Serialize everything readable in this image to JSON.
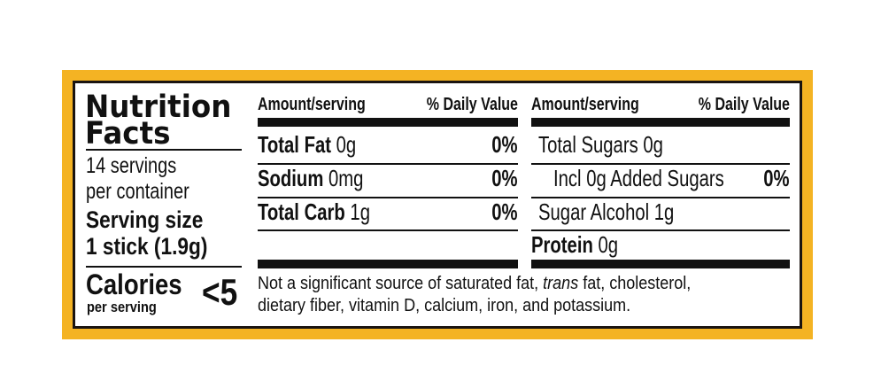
{
  "colors": {
    "frame": "#f4b323",
    "border": "#1a1410"
  },
  "title_line1": "Nutrition",
  "title_line2": "Facts",
  "servings_line1": "14 servings",
  "servings_line2": "per container",
  "serving_size_label": "Serving size",
  "serving_size_value": "1 stick (1.9g)",
  "calories_label": "Calories",
  "calories_sub": "per serving",
  "calories_value": "<5",
  "left_table": {
    "header_amount": "Amount/serving",
    "header_dv": "% Daily Value",
    "rows": [
      {
        "name": "Total Fat",
        "amount": "0g",
        "dv": "0%"
      },
      {
        "name": "Sodium",
        "amount": "0mg",
        "dv": "0%"
      },
      {
        "name": "Total Carb",
        "amount": "1g",
        "dv": "0%"
      }
    ]
  },
  "right_table": {
    "header_amount": "Amount/serving",
    "header_dv": "% Daily Value",
    "rows": [
      {
        "text": "Total Sugars 0g",
        "dv": ""
      },
      {
        "text": "Incl 0g Added Sugars",
        "dv": "0%"
      },
      {
        "text": "Sugar Alcohol 1g",
        "dv": ""
      },
      {
        "name": "Protein",
        "amount": "0g"
      }
    ]
  },
  "footnote": {
    "part1": "Not a significant source of saturated fat, ",
    "italic": "trans",
    "part2": " fat, cholesterol,",
    "line2": "dietary fiber, vitamin D, calcium, iron, and potassium."
  }
}
